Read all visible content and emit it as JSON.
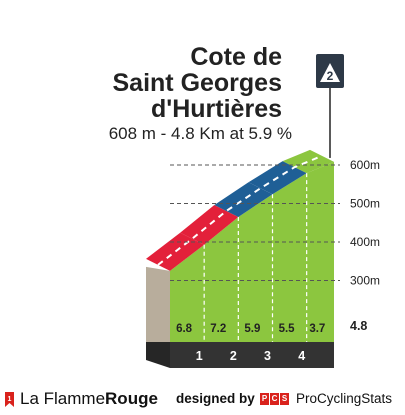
{
  "climb": {
    "title_lines": [
      "Cote de",
      "Saint Georges",
      "d'Hurtières"
    ],
    "subtitle": "608 m - 4.8 Km at 5.9 %",
    "category": "2",
    "flag_icon": "category-flag-icon"
  },
  "colors": {
    "grade_low": "#8cc63f",
    "grade_mid": "#1f5f96",
    "grade_high": "#e3203a",
    "side_wall": "#b8ad9c",
    "base": "#333333",
    "flag": "#2d3947",
    "grid": "#555555"
  },
  "chart_data": {
    "type": "area",
    "title": "Cote de Saint Georges d'Hurtières",
    "subtitle": "608 m - 4.8 Km at 5.9 %",
    "xlabel": "",
    "ylabel": "",
    "y_ticks": [
      "600m",
      "500m",
      "400m",
      "300m"
    ],
    "y_tick_values": [
      600,
      500,
      400,
      300
    ],
    "ylim": [
      200,
      610
    ],
    "xlim": [
      0,
      4.8
    ],
    "x_ticks": [
      "1",
      "2",
      "3",
      "4"
    ],
    "x_tick_values": [
      1,
      2,
      3,
      4
    ],
    "distance_label": "4.8",
    "segments": [
      {
        "start_km": 0,
        "end_km": 1,
        "gradient": 6.8,
        "label": "6.8",
        "color": "#e3203a"
      },
      {
        "start_km": 1,
        "end_km": 2,
        "gradient": 7.2,
        "label": "7.2",
        "color": "#e3203a"
      },
      {
        "start_km": 2,
        "end_km": 3,
        "gradient": 5.9,
        "label": "5.9",
        "color": "#1f5f96"
      },
      {
        "start_km": 3,
        "end_km": 4,
        "gradient": 5.5,
        "label": "5.5",
        "color": "#1f5f96"
      },
      {
        "start_km": 4,
        "end_km": 4.8,
        "gradient": 3.7,
        "label": "3.7",
        "color": "#8cc63f"
      }
    ],
    "profile": {
      "x": [
        0,
        1,
        2,
        3,
        4,
        4.8
      ],
      "y": [
        325,
        393,
        465,
        524,
        579,
        608
      ]
    },
    "grid": true,
    "summit_elevation": 608
  },
  "footer": {
    "brand_light": "La Flamme",
    "brand_bold": "Rouge",
    "designed_by": "designed by",
    "pcs_letters": [
      "P",
      "C",
      "S"
    ],
    "pcs_name": "ProCyclingStats"
  }
}
